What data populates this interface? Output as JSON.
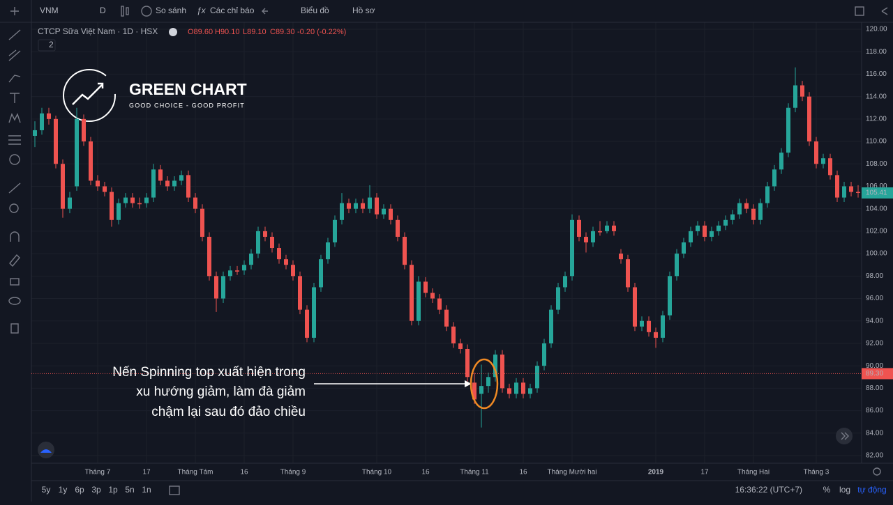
{
  "toolbar": {
    "symbol": "VNM",
    "interval": "D",
    "compare": "So sánh",
    "indicators": "Các chỉ báo",
    "chart": "Biểu đồ",
    "profile": "Hồ sơ"
  },
  "legend": {
    "name": "CTCP Sữa Việt Nam · 1D · HSX",
    "open": "O89.60",
    "high": "H90.10",
    "low": "L89.10",
    "close": "C89.30",
    "change": "-0.20 (-0.22%)",
    "badge": "2"
  },
  "logo": {
    "title": "GREEN CHART",
    "tagline": "GOOD CHOICE - GOOD PROFIT"
  },
  "annotation": [
    "Nến Spinning top xuất hiện trong",
    "xu hướng giảm, làm đà giảm",
    "chậm lại sau đó đảo chiều"
  ],
  "bottom": {
    "ranges": [
      "5y",
      "1y",
      "6p",
      "3p",
      "1p",
      "5n",
      "1n"
    ],
    "time": "16:36:22 (UTC+7)",
    "percent": "%",
    "log": "log",
    "auto": "tự động"
  },
  "chart_data": {
    "type": "candlestick",
    "up_color": "#26a69a",
    "down_color": "#ef5350",
    "ylim": [
      82,
      120
    ],
    "yticks": [
      {
        "value": 82,
        "label": "82.00"
      },
      {
        "value": 84,
        "label": "84.00"
      },
      {
        "value": 86,
        "label": "86.00"
      },
      {
        "value": 88,
        "label": "88.00"
      },
      {
        "value": 90,
        "label": "90.00"
      },
      {
        "value": 92,
        "label": "92.00"
      },
      {
        "value": 94,
        "label": "94.00"
      },
      {
        "value": 96,
        "label": "96.00"
      },
      {
        "value": 98,
        "label": "98.00"
      },
      {
        "value": 100,
        "label": "100.00"
      },
      {
        "value": 102,
        "label": "102.00"
      },
      {
        "value": 104,
        "label": "104.00"
      },
      {
        "value": 106,
        "label": "106.00"
      },
      {
        "value": 108,
        "label": "108.00"
      },
      {
        "value": 110,
        "label": "110.00"
      },
      {
        "value": 112,
        "label": "112.00"
      },
      {
        "value": 114,
        "label": "114.00"
      },
      {
        "value": 116,
        "label": "116.00"
      },
      {
        "value": 118,
        "label": "118.00"
      },
      {
        "value": 120,
        "label": "120.00"
      }
    ],
    "xticks": [
      {
        "value": 9,
        "label": "Tháng 7"
      },
      {
        "value": 16,
        "label": "17"
      },
      {
        "value": 23,
        "label": "Tháng Tám"
      },
      {
        "value": 30,
        "label": "16"
      },
      {
        "value": 37,
        "label": "Tháng 9"
      },
      {
        "value": 49,
        "label": "Tháng 10"
      },
      {
        "value": 56,
        "label": "16"
      },
      {
        "value": 63,
        "label": "Tháng 11"
      },
      {
        "value": 70,
        "label": "16"
      },
      {
        "value": 77,
        "label": "Tháng Mười hai"
      },
      {
        "value": 89,
        "label": "2019"
      },
      {
        "value": 96,
        "label": "17"
      },
      {
        "value": 103,
        "label": "Tháng Hai"
      },
      {
        "value": 112,
        "label": "Tháng 3"
      }
    ],
    "last_price": {
      "value": 105.41,
      "label": "105.41"
    },
    "marker_line": {
      "value": 89.3,
      "label": "89.30"
    },
    "ohlc": [
      [
        110.5,
        111.8,
        109.5,
        111
      ],
      [
        111,
        113,
        110.6,
        112.5
      ],
      [
        112.5,
        113,
        111.5,
        112
      ],
      [
        112,
        112.3,
        107.6,
        108
      ],
      [
        108,
        108.4,
        103.2,
        104
      ],
      [
        104,
        105.5,
        103.6,
        105
      ],
      [
        106,
        113,
        105.6,
        112
      ],
      [
        112,
        112.4,
        109.6,
        110
      ],
      [
        110,
        110.4,
        106.1,
        106.5
      ],
      [
        106.5,
        107,
        105.6,
        106
      ],
      [
        106,
        106.4,
        105.1,
        105.5
      ],
      [
        105.5,
        105.9,
        102.4,
        103
      ],
      [
        103,
        104.9,
        102.6,
        104.5
      ],
      [
        104.5,
        105.4,
        104.1,
        105
      ],
      [
        105,
        105.4,
        104.1,
        104.5
      ],
      [
        104.5,
        105,
        104,
        104.4
      ],
      [
        104.5,
        105.4,
        104.1,
        105
      ],
      [
        105,
        108,
        104.6,
        107.5
      ],
      [
        107.5,
        107.9,
        106.1,
        106.5
      ],
      [
        106.5,
        106.9,
        105.6,
        106
      ],
      [
        106,
        106.9,
        105.6,
        106.5
      ],
      [
        106.5,
        107.4,
        106.1,
        107
      ],
      [
        107,
        107.4,
        104.6,
        105
      ],
      [
        105,
        105.4,
        103.6,
        104
      ],
      [
        104,
        104.4,
        101.1,
        101.5
      ],
      [
        101.5,
        101.9,
        97.6,
        98
      ],
      [
        98,
        98.4,
        94.8,
        96
      ],
      [
        96,
        98.4,
        95.6,
        98
      ],
      [
        98,
        98.9,
        97.6,
        98.5
      ],
      [
        98.5,
        98.9,
        98.1,
        98.4
      ],
      [
        98.5,
        99.4,
        98.1,
        99
      ],
      [
        99,
        100.4,
        98.6,
        100
      ],
      [
        100,
        102.4,
        99.6,
        102
      ],
      [
        102,
        102.4,
        101.1,
        101.5
      ],
      [
        101.5,
        101.9,
        100.1,
        100.5
      ],
      [
        100.5,
        100.9,
        99.1,
        99.5
      ],
      [
        99.5,
        99.9,
        98.6,
        99
      ],
      [
        99,
        99.4,
        97.6,
        98
      ],
      [
        98,
        98.4,
        94.6,
        95
      ],
      [
        95,
        95.4,
        92.1,
        92.5
      ],
      [
        92.5,
        97.4,
        92.1,
        97
      ],
      [
        97,
        99.9,
        96.6,
        99.5
      ],
      [
        99.5,
        101.4,
        99.1,
        101
      ],
      [
        101,
        103.4,
        100.6,
        103
      ],
      [
        103,
        105.4,
        102.6,
        104.5
      ],
      [
        104.5,
        104.9,
        103.6,
        104
      ],
      [
        104,
        104.9,
        103.6,
        104.5
      ],
      [
        104.5,
        104.9,
        103.6,
        104
      ],
      [
        104,
        106.1,
        103.6,
        105
      ],
      [
        105,
        105.4,
        103.1,
        103.5
      ],
      [
        103.5,
        104.4,
        103.1,
        104
      ],
      [
        104,
        104.4,
        102.6,
        103
      ],
      [
        103,
        103.4,
        101.1,
        101.5
      ],
      [
        101.5,
        101.9,
        98.6,
        99
      ],
      [
        99,
        99.4,
        93.6,
        94
      ],
      [
        94,
        98,
        93.6,
        97.5
      ],
      [
        97.5,
        97.9,
        96.1,
        96.5
      ],
      [
        96.5,
        96.9,
        95.6,
        96
      ],
      [
        96,
        96.4,
        94.6,
        95
      ],
      [
        95,
        95.4,
        93.1,
        93.5
      ],
      [
        93.5,
        93.9,
        91.6,
        92
      ],
      [
        92,
        92.4,
        91.1,
        91.5
      ],
      [
        91.5,
        91.9,
        88.6,
        89
      ],
      [
        88.5,
        89.4,
        86.6,
        87
      ],
      [
        87.5,
        90.1,
        84.5,
        88.2
      ],
      [
        88.2,
        89.4,
        87.6,
        89
      ],
      [
        89,
        91.4,
        88.6,
        91
      ],
      [
        91,
        91.4,
        87.6,
        88
      ],
      [
        88,
        88.4,
        87.1,
        87.5
      ],
      [
        87.5,
        88.9,
        87.1,
        88.5
      ],
      [
        88.5,
        88.9,
        87.1,
        87.5
      ],
      [
        87.5,
        88.4,
        87.1,
        88
      ],
      [
        88,
        90.4,
        87.6,
        90
      ],
      [
        90,
        92.4,
        89.6,
        92
      ],
      [
        92,
        95.4,
        91.6,
        95
      ],
      [
        95,
        97.4,
        94.6,
        97
      ],
      [
        97,
        98.4,
        96.6,
        98
      ],
      [
        98,
        103.5,
        97.6,
        103
      ],
      [
        103,
        103.4,
        101.1,
        101.5
      ],
      [
        101.5,
        101.9,
        100.1,
        101
      ],
      [
        101,
        102.4,
        100.6,
        102
      ],
      [
        102,
        102.9,
        101.6,
        101.9
      ],
      [
        102,
        102.9,
        101.8,
        102.5
      ],
      [
        102.5,
        102.9,
        101.6,
        102
      ],
      [
        100,
        100.4,
        99.1,
        99.5
      ],
      [
        99.5,
        99.9,
        96.6,
        97
      ],
      [
        97,
        97.4,
        93.1,
        93.5
      ],
      [
        93.5,
        94.4,
        93.1,
        94
      ],
      [
        94,
        94.4,
        92.6,
        93
      ],
      [
        93,
        93.4,
        91.6,
        92.5
      ],
      [
        92.5,
        94.9,
        92.1,
        94.5
      ],
      [
        94.5,
        98.4,
        94.1,
        98
      ],
      [
        98,
        100.4,
        97.6,
        100
      ],
      [
        100,
        101.4,
        99.6,
        101
      ],
      [
        101,
        102.4,
        100.6,
        102
      ],
      [
        102,
        102.9,
        101.6,
        102.5
      ],
      [
        102.5,
        102.9,
        101.1,
        101.5
      ],
      [
        101.5,
        102.4,
        101.1,
        102
      ],
      [
        102,
        102.9,
        101.6,
        102.5
      ],
      [
        102.5,
        103.4,
        102.1,
        103
      ],
      [
        103,
        103.9,
        102.6,
        103.5
      ],
      [
        103.5,
        104.9,
        103.1,
        104.5
      ],
      [
        104.5,
        104.9,
        103.6,
        104
      ],
      [
        104,
        104.4,
        102.6,
        103
      ],
      [
        103,
        104.9,
        102.6,
        104.5
      ],
      [
        104.5,
        106.4,
        104.1,
        106
      ],
      [
        106,
        107.9,
        105.6,
        107.5
      ],
      [
        107.5,
        109.4,
        107.1,
        109
      ],
      [
        109,
        113.4,
        108.6,
        113
      ],
      [
        113,
        116.6,
        112.6,
        115
      ],
      [
        115,
        115.4,
        113.6,
        114
      ],
      [
        114,
        114.4,
        109.6,
        110
      ],
      [
        110,
        110.4,
        107.6,
        108
      ],
      [
        108,
        108.9,
        107.6,
        108.5
      ],
      [
        108.5,
        108.9,
        106.6,
        107
      ],
      [
        107,
        107.4,
        104.6,
        105
      ],
      [
        105,
        106.4,
        104.6,
        106
      ],
      [
        106,
        106.4,
        105.1,
        105.5
      ],
      [
        105.5,
        106.1,
        105,
        105.41
      ]
    ]
  }
}
